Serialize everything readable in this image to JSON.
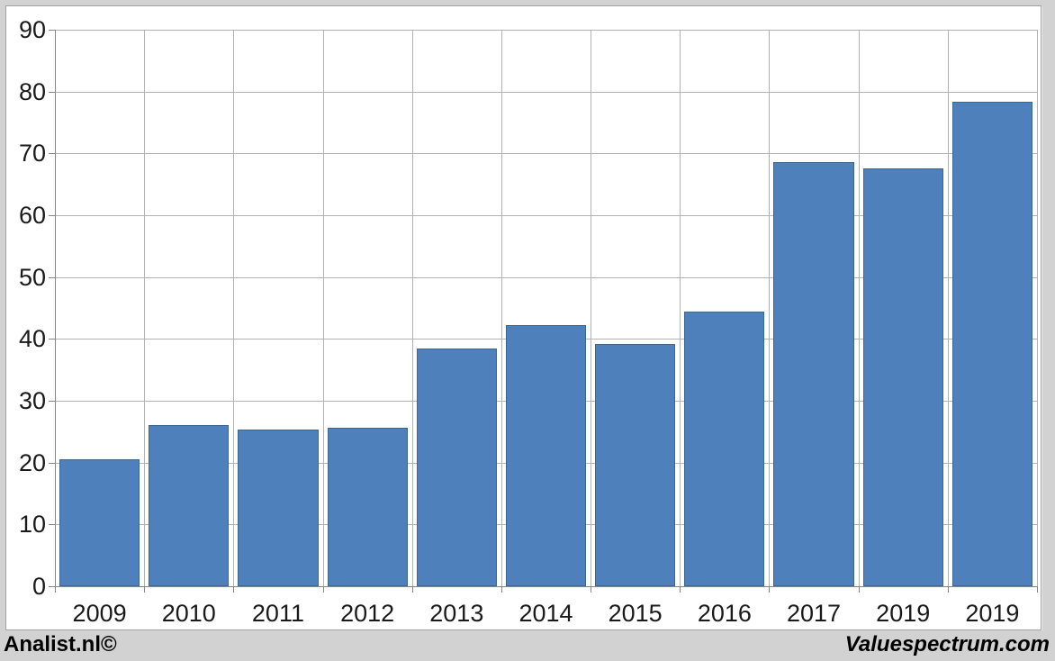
{
  "chart_data": {
    "type": "bar",
    "title": "",
    "xlabel": "",
    "ylabel": "",
    "categories": [
      "2009",
      "2010",
      "2011",
      "2012",
      "2013",
      "2014",
      "2015",
      "2016",
      "2017",
      "2019",
      "2019"
    ],
    "values": [
      20.5,
      26.0,
      25.4,
      25.6,
      38.5,
      42.2,
      39.2,
      44.4,
      68.6,
      67.6,
      78.3
    ],
    "ylim": [
      0,
      90
    ],
    "ytick_step": 10,
    "ytick_labels": [
      "0",
      "10",
      "20",
      "30",
      "40",
      "50",
      "60",
      "70",
      "80",
      "90"
    ],
    "grid": true,
    "legend": false,
    "bar_color": "#4e80bc",
    "bar_border_color": "#3c688f",
    "gridline_color": "#b2b2b2",
    "axis_color": "#868686",
    "plot_background": "#ffffff",
    "outer_background": "#d2d2d2"
  },
  "footer": {
    "left_text": "Analist.nl©",
    "right_text": "Valuespectrum.com"
  }
}
